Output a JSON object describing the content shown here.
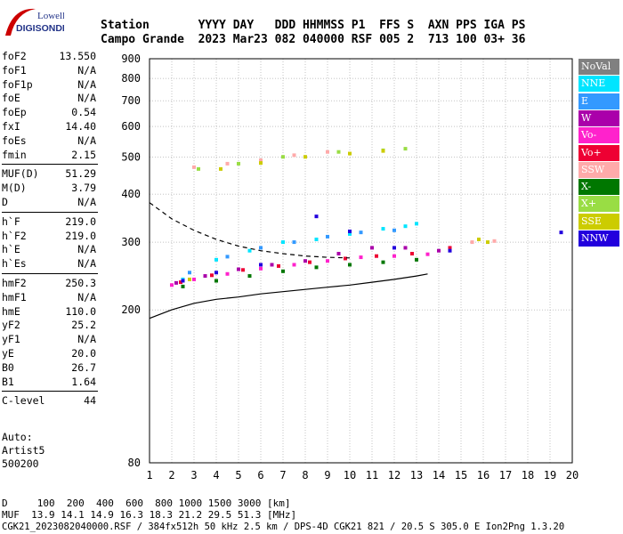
{
  "logo": {
    "line1": "Lowell",
    "line2": "DIGISONDE"
  },
  "header": {
    "labels": "Station       YYYY DAY   DDD HHMMSS P1  FFS S  AXN PPS IGA PS",
    "values": "Campo Grande  2023 Mar23 082 040000 RSF 005 2  713 100 03+ 36"
  },
  "params": [
    {
      "group": [
        {
          "k": "foF2",
          "v": "13.550"
        },
        {
          "k": "foF1",
          "v": "N/A"
        },
        {
          "k": "foF1p",
          "v": "N/A"
        },
        {
          "k": "foE",
          "v": "N/A"
        },
        {
          "k": "foEp",
          "v": "0.54"
        },
        {
          "k": "fxI",
          "v": "14.40"
        },
        {
          "k": "foEs",
          "v": "N/A"
        },
        {
          "k": "fmin",
          "v": "2.15"
        }
      ]
    },
    {
      "group": [
        {
          "k": "MUF(D)",
          "v": "51.29"
        },
        {
          "k": "M(D)",
          "v": "3.79"
        },
        {
          "k": "D",
          "v": "N/A"
        }
      ]
    },
    {
      "group": [
        {
          "k": "h`F",
          "v": "219.0"
        },
        {
          "k": "h`F2",
          "v": "219.0"
        },
        {
          "k": "h`E",
          "v": "N/A"
        },
        {
          "k": "h`Es",
          "v": "N/A"
        }
      ]
    },
    {
      "group": [
        {
          "k": "hmF2",
          "v": "250.3"
        },
        {
          "k": "hmF1",
          "v": "N/A"
        },
        {
          "k": "hmE",
          "v": "110.0"
        },
        {
          "k": "yF2",
          "v": "25.2"
        },
        {
          "k": "yF1",
          "v": "N/A"
        },
        {
          "k": "yE",
          "v": "20.0"
        },
        {
          "k": "B0",
          "v": "26.7"
        },
        {
          "k": "B1",
          "v": "1.64"
        }
      ]
    },
    {
      "group": [
        {
          "k": "C-level",
          "v": "44"
        }
      ]
    }
  ],
  "auto": {
    "line1": "Auto:",
    "line2": "Artist5",
    "line3": "500200"
  },
  "legend": [
    {
      "label": "NoVal",
      "color": "#808080"
    },
    {
      "label": "NNE",
      "color": "#00e5ff"
    },
    {
      "label": "E",
      "color": "#3399ff"
    },
    {
      "label": "W",
      "color": "#aa00aa"
    },
    {
      "label": "Vo-",
      "color": "#ff22cc"
    },
    {
      "label": "Vo+",
      "color": "#ee0033"
    },
    {
      "label": "SSW",
      "color": "#ffaaaa"
    },
    {
      "label": "X-",
      "color": "#007700"
    },
    {
      "label": "X+",
      "color": "#99dd44"
    },
    {
      "label": "SSE",
      "color": "#cccc00"
    },
    {
      "label": "NNW",
      "color": "#2200dd"
    }
  ],
  "footer": {
    "line1": "D     100  200  400  600  800 1000 1500 3000 [km]",
    "line2": "MUF  13.9 14.1 14.9 16.3 18.3 21.2 29.5 51.3 [MHz]",
    "line3": "CGK21_2023082040000.RSF / 384fx512h 50 kHz 2.5 km / DPS-4D CGK21 821 / 20.5 S 305.0 E Ion2Png 1.3.20"
  },
  "chart_data": {
    "type": "scatter",
    "title": "",
    "xlabel": "",
    "ylabel": "",
    "xlim": [
      1,
      20
    ],
    "ylim": [
      80,
      900
    ],
    "y_scale": "log",
    "x_ticks": [
      1,
      2,
      3,
      4,
      5,
      6,
      7,
      8,
      9,
      10,
      11,
      12,
      13,
      14,
      15,
      16,
      17,
      18,
      19,
      20
    ],
    "y_ticks": [
      80,
      200,
      300,
      400,
      500,
      600,
      700,
      800,
      900
    ],
    "grid": true,
    "series": [
      {
        "name": "NNE",
        "color": "#00e5ff",
        "points": [
          [
            2.5,
            240
          ],
          [
            4.0,
            270
          ],
          [
            5.5,
            285
          ],
          [
            7.0,
            300
          ],
          [
            8.5,
            305
          ],
          [
            10.0,
            315
          ],
          [
            11.5,
            325
          ],
          [
            12.5,
            330
          ],
          [
            13.0,
            335
          ]
        ]
      },
      {
        "name": "E",
        "color": "#3399ff",
        "points": [
          [
            2.8,
            250
          ],
          [
            4.5,
            275
          ],
          [
            6.0,
            290
          ],
          [
            7.5,
            300
          ],
          [
            9.0,
            310
          ],
          [
            10.5,
            318
          ],
          [
            12.0,
            322
          ]
        ]
      },
      {
        "name": "W",
        "color": "#aa00aa",
        "points": [
          [
            2.2,
            235
          ],
          [
            3.5,
            245
          ],
          [
            5.0,
            255
          ],
          [
            6.5,
            262
          ],
          [
            8.0,
            268
          ],
          [
            9.5,
            280
          ],
          [
            11.0,
            290
          ],
          [
            12.5,
            290
          ],
          [
            14.0,
            285
          ]
        ]
      },
      {
        "name": "Vo-",
        "color": "#ff22cc",
        "points": [
          [
            2.0,
            232
          ],
          [
            3.0,
            240
          ],
          [
            4.5,
            248
          ],
          [
            6.0,
            256
          ],
          [
            7.5,
            262
          ],
          [
            9.0,
            268
          ],
          [
            10.5,
            274
          ],
          [
            12.0,
            276
          ],
          [
            13.5,
            279
          ]
        ]
      },
      {
        "name": "Vo+",
        "color": "#ee0033",
        "points": [
          [
            2.4,
            236
          ],
          [
            3.8,
            246
          ],
          [
            5.2,
            254
          ],
          [
            6.8,
            260
          ],
          [
            8.2,
            266
          ],
          [
            9.8,
            272
          ],
          [
            11.2,
            276
          ],
          [
            12.8,
            280
          ],
          [
            14.5,
            290
          ]
        ]
      },
      {
        "name": "SSW",
        "color": "#ffaaaa",
        "points": [
          [
            3.0,
            470
          ],
          [
            4.5,
            480
          ],
          [
            6.0,
            490
          ],
          [
            7.5,
            505
          ],
          [
            9.0,
            515
          ],
          [
            15.5,
            300
          ],
          [
            16.5,
            302
          ]
        ]
      },
      {
        "name": "X-",
        "color": "#007700",
        "points": [
          [
            2.5,
            230
          ],
          [
            4.0,
            238
          ],
          [
            5.5,
            245
          ],
          [
            7.0,
            252
          ],
          [
            8.5,
            258
          ],
          [
            10.0,
            262
          ],
          [
            11.5,
            266
          ],
          [
            13.0,
            270
          ]
        ]
      },
      {
        "name": "X+",
        "color": "#99dd44",
        "points": [
          [
            3.2,
            465
          ],
          [
            5.0,
            480
          ],
          [
            7.0,
            500
          ],
          [
            9.5,
            515
          ],
          [
            11.5,
            520
          ],
          [
            12.5,
            525
          ]
        ]
      },
      {
        "name": "SSE",
        "color": "#cccc00",
        "points": [
          [
            2.8,
            240
          ],
          [
            4.2,
            465
          ],
          [
            6.0,
            482
          ],
          [
            8.0,
            500
          ],
          [
            10.0,
            510
          ],
          [
            11.5,
            518
          ],
          [
            15.8,
            305
          ],
          [
            16.2,
            300
          ]
        ]
      },
      {
        "name": "NNW",
        "color": "#2200dd",
        "points": [
          [
            2.5,
            238
          ],
          [
            4.0,
            250
          ],
          [
            6.0,
            262
          ],
          [
            8.5,
            350
          ],
          [
            10.0,
            320
          ],
          [
            12.0,
            290
          ],
          [
            14.5,
            285
          ],
          [
            19.5,
            318
          ]
        ]
      }
    ],
    "curves": [
      {
        "name": "trace",
        "style": "solid",
        "points": [
          [
            1,
            190
          ],
          [
            2,
            200
          ],
          [
            3,
            208
          ],
          [
            4,
            213
          ],
          [
            5,
            216
          ],
          [
            6,
            220
          ],
          [
            7,
            223
          ],
          [
            8,
            226
          ],
          [
            9,
            229
          ],
          [
            10,
            232
          ],
          [
            11,
            236
          ],
          [
            12,
            240
          ],
          [
            13,
            245
          ],
          [
            13.5,
            248
          ]
        ]
      },
      {
        "name": "profile",
        "style": "dashed",
        "points": [
          [
            1,
            380
          ],
          [
            2,
            345
          ],
          [
            3,
            322
          ],
          [
            4,
            305
          ],
          [
            5,
            293
          ],
          [
            6,
            285
          ],
          [
            7,
            280
          ],
          [
            8,
            276
          ],
          [
            9,
            274
          ],
          [
            10,
            273
          ]
        ]
      }
    ]
  }
}
